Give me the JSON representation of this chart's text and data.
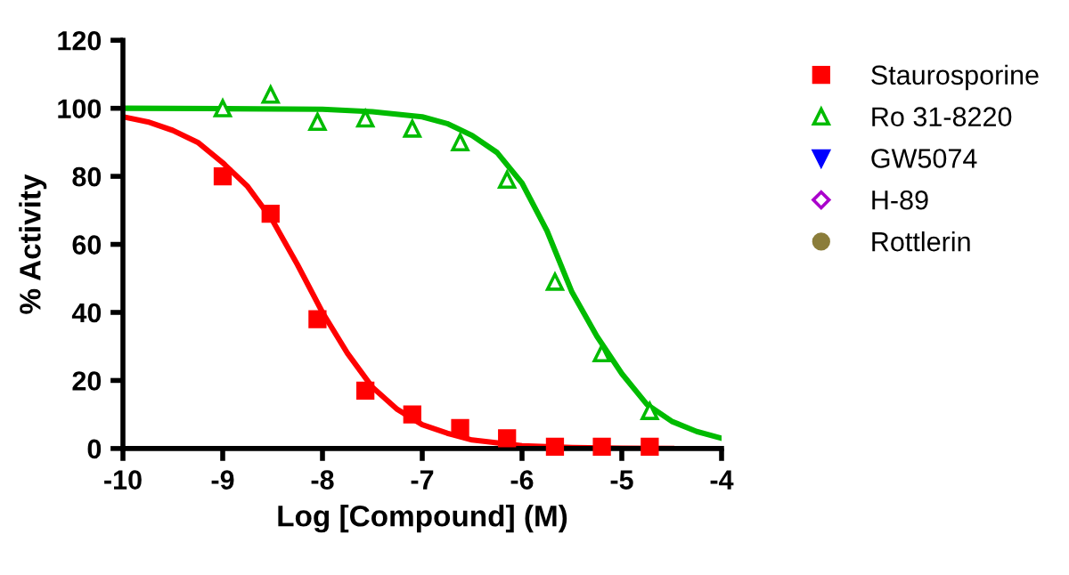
{
  "chart_data": {
    "type": "scatter",
    "xlabel": "Log [Compound] (M)",
    "ylabel": "% Activity",
    "xlim": [
      -10,
      -4
    ],
    "xticks": [
      -10,
      -9,
      -8,
      -7,
      -6,
      -5,
      -4
    ],
    "ylim": [
      0,
      120
    ],
    "yticks": [
      0,
      20,
      40,
      60,
      80,
      100,
      120
    ],
    "grid": false,
    "legend": "right",
    "series": [
      {
        "name": "Staurosporine",
        "color": "#ff0000",
        "marker": "square",
        "x": [
          -9,
          -8.52,
          -8.05,
          -7.57,
          -7.1,
          -6.62,
          -6.15,
          -5.67,
          -5.2,
          -4.72
        ],
        "values": [
          80,
          69,
          38,
          17,
          10,
          6,
          3,
          0.5,
          0.5,
          0.5
        ]
      },
      {
        "name": "Ro 31-8220",
        "color": "#00bb00",
        "marker": "triangle_open",
        "x": [
          -9,
          -8.52,
          -8.05,
          -7.57,
          -7.1,
          -6.62,
          -6.15,
          -5.67,
          -5.2,
          -4.72
        ],
        "values": [
          100,
          104,
          96,
          97,
          94,
          90,
          79,
          49,
          28,
          11
        ]
      },
      {
        "name": "GW5074",
        "color": "#0000ff",
        "marker": "triangle_down"
      },
      {
        "name": "H-89",
        "color": "#aa00cc",
        "marker": "diamond_open"
      },
      {
        "name": "Rottlerin",
        "color": "#8b7d3a",
        "marker": "circle"
      },
      {
        "type": "line",
        "color": "#ff0000",
        "x": [
          -10,
          -9.75,
          -9.5,
          -9.25,
          -9,
          -8.75,
          -8.5,
          -8.25,
          -8,
          -7.75,
          -7.5,
          -7.25,
          -7,
          -6.75,
          -6.5,
          -6,
          -5.5,
          -5,
          -4.5
        ],
        "values": [
          97.5,
          96,
          93.5,
          90,
          84,
          77,
          67,
          54,
          40,
          28,
          18,
          11.5,
          7,
          4.5,
          2.5,
          0.8,
          0.3,
          0.1,
          0
        ]
      },
      {
        "type": "line",
        "color": "#00bb00",
        "x": [
          -10,
          -9,
          -8,
          -7.5,
          -7,
          -6.75,
          -6.5,
          -6.25,
          -6,
          -5.75,
          -5.5,
          -5.25,
          -5,
          -4.75,
          -4.5,
          -4.25,
          -4
        ],
        "values": [
          100,
          99.9,
          99.7,
          99,
          97.5,
          95.5,
          92,
          87,
          78,
          64,
          46,
          33,
          22,
          13,
          8,
          5,
          3
        ]
      }
    ]
  }
}
